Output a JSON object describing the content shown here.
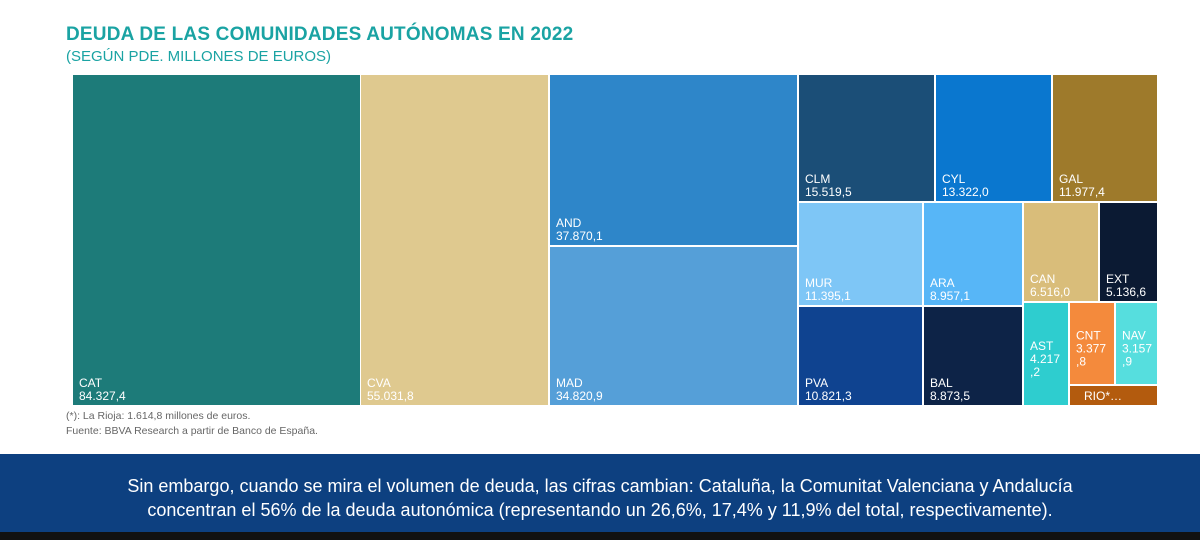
{
  "chart_data": {
    "type": "treemap",
    "title": "DEUDA DE LAS COMUNIDADES AUTÓNOMAS EN 2022",
    "subtitle": "(SEGÚN PDE. MILLONES DE EUROS)",
    "items": [
      {
        "label": "CAT",
        "value_text": "84.327,4",
        "value": 84327.4,
        "color": "#1d7b79"
      },
      {
        "label": "CVA",
        "value_text": "55.031,8",
        "value": 55031.8,
        "color": "#dfc98f"
      },
      {
        "label": "AND",
        "value_text": "37.870,1",
        "value": 37870.1,
        "color": "#2e86c9"
      },
      {
        "label": "MAD",
        "value_text": "34.820,9",
        "value": 34820.9,
        "color": "#559fd8"
      },
      {
        "label": "CLM",
        "value_text": "15.519,5",
        "value": 15519.5,
        "color": "#1b4e77"
      },
      {
        "label": "CYL",
        "value_text": "13.322,0",
        "value": 13322.0,
        "color": "#0a77cf"
      },
      {
        "label": "GAL",
        "value_text": "11.977,4",
        "value": 11977.4,
        "color": "#9e7a2b"
      },
      {
        "label": "MUR",
        "value_text": "11.395,1",
        "value": 11395.1,
        "color": "#7ec6f6"
      },
      {
        "label": "ARA",
        "value_text": "8.957,1",
        "value": 8957.1,
        "color": "#57b6f7"
      },
      {
        "label": "CAN",
        "value_text": "6.516,0",
        "value": 6516.0,
        "color": "#d9bd7a"
      },
      {
        "label": "EXT",
        "value_text": "5.136,6",
        "value": 5136.6,
        "color": "#0b1a33"
      },
      {
        "label": "PVA",
        "value_text": "10.821,3",
        "value": 10821.3,
        "color": "#0f4390"
      },
      {
        "label": "BAL",
        "value_text": "8.873,5",
        "value": 8873.5,
        "color": "#0d2347"
      },
      {
        "label": "AST",
        "value_text": "4.217,2",
        "value": 4217.2,
        "color": "#2ecdcf"
      },
      {
        "label": "CNT",
        "value_text": "3.377,8",
        "value": 3377.8,
        "color": "#f48a3c"
      },
      {
        "label": "NAV",
        "value_text": "3.157,9",
        "value": 3157.9,
        "color": "#56dede"
      },
      {
        "label": "RIO*…",
        "value_text": "",
        "value": 1614.8,
        "color": "#b35b0e"
      }
    ],
    "footnotes": [
      "(*): La Rioja: 1.614,8 millones de euros.",
      "Fuente: BBVA Research a partir de Banco de España."
    ]
  },
  "banner": {
    "line1": "Sin embargo, cuando se mira el volumen de deuda, las cifras cambian: Cataluña, la Comunitat Valenciana y Andalucía",
    "line2": "concentran  el 56% de la deuda autonómica (representando un 26,6%, 17,4% y 11,9% del total, respectivamente)."
  }
}
